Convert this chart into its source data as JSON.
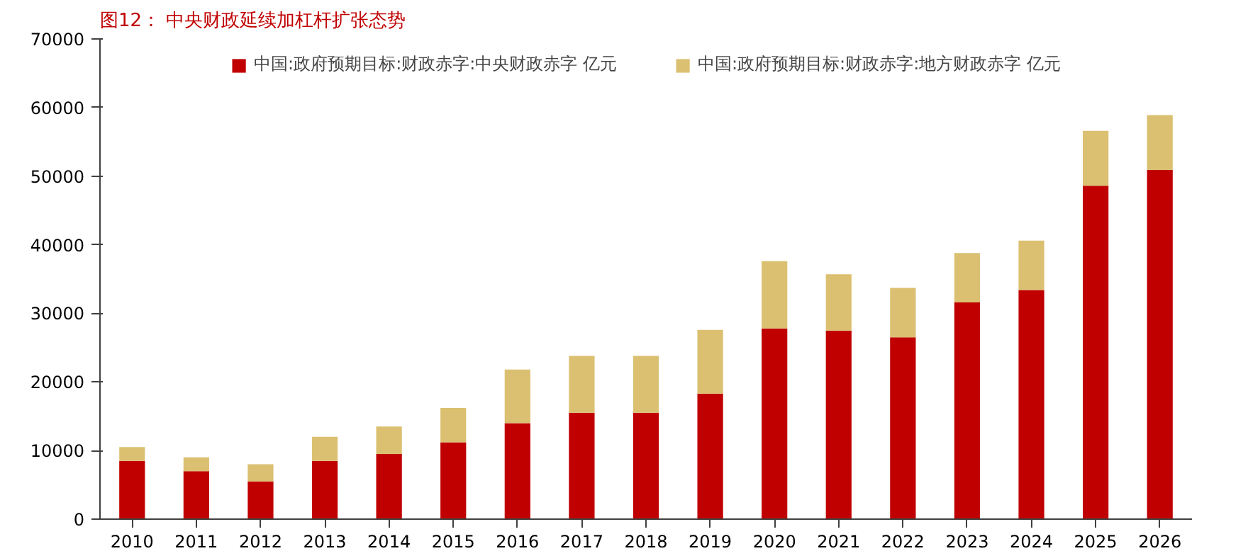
{
  "chart_data": {
    "type": "bar",
    "title": "图12：  中央财政延续加杠杆扩张态势",
    "stacked": true,
    "categories": [
      "2010",
      "2011",
      "2012",
      "2013",
      "2014",
      "2015",
      "2016",
      "2017",
      "2018",
      "2019",
      "2020",
      "2021",
      "2022",
      "2023",
      "2024",
      "2025",
      "2026"
    ],
    "series": [
      {
        "name": "中国:政府预期目标:财政赤字:中央财政赤字 亿元",
        "color": "#c00000",
        "values": [
          8500,
          7000,
          5500,
          8500,
          9500,
          11200,
          14000,
          15500,
          15500,
          18300,
          27800,
          27500,
          26500,
          31600,
          33400,
          48600,
          50900
        ]
      },
      {
        "name": "中国:政府预期目标:财政赤字:地方财政赤字 亿元",
        "color": "#dcc071",
        "values": [
          2000,
          2000,
          2500,
          3500,
          4000,
          5000,
          7800,
          8300,
          8300,
          9300,
          9800,
          8200,
          7200,
          7200,
          7200,
          8000,
          8000
        ]
      }
    ],
    "ylim": [
      0,
      70000
    ],
    "yticks": [
      0,
      10000,
      20000,
      30000,
      40000,
      50000,
      60000,
      70000
    ],
    "grid": false,
    "legend": "top"
  }
}
